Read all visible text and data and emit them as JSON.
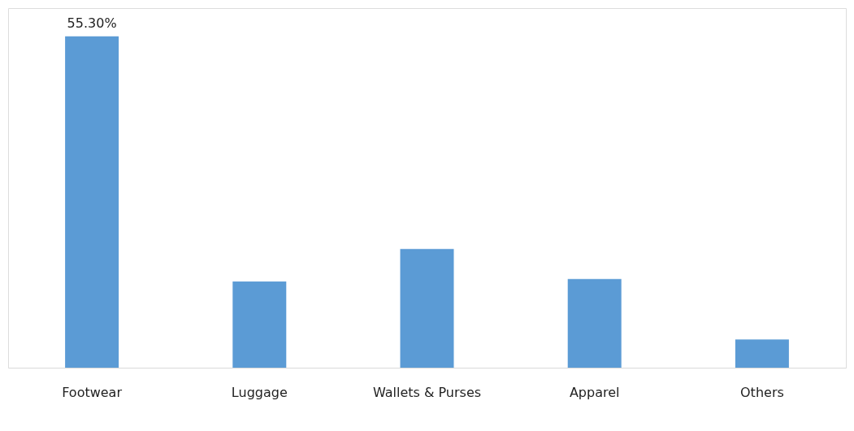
{
  "chart_data": {
    "type": "bar",
    "categories": [
      "Footwear",
      "Luggage",
      "Wallets & Purses",
      "Apparel",
      "Others"
    ],
    "values": [
      55.3,
      14.4,
      19.8,
      14.8,
      4.7
    ],
    "value_labels": [
      "55.30%",
      null,
      null,
      null,
      null
    ],
    "ylim": [
      0,
      60
    ],
    "tick_labels": "x",
    "color": "#5b9bd5"
  }
}
